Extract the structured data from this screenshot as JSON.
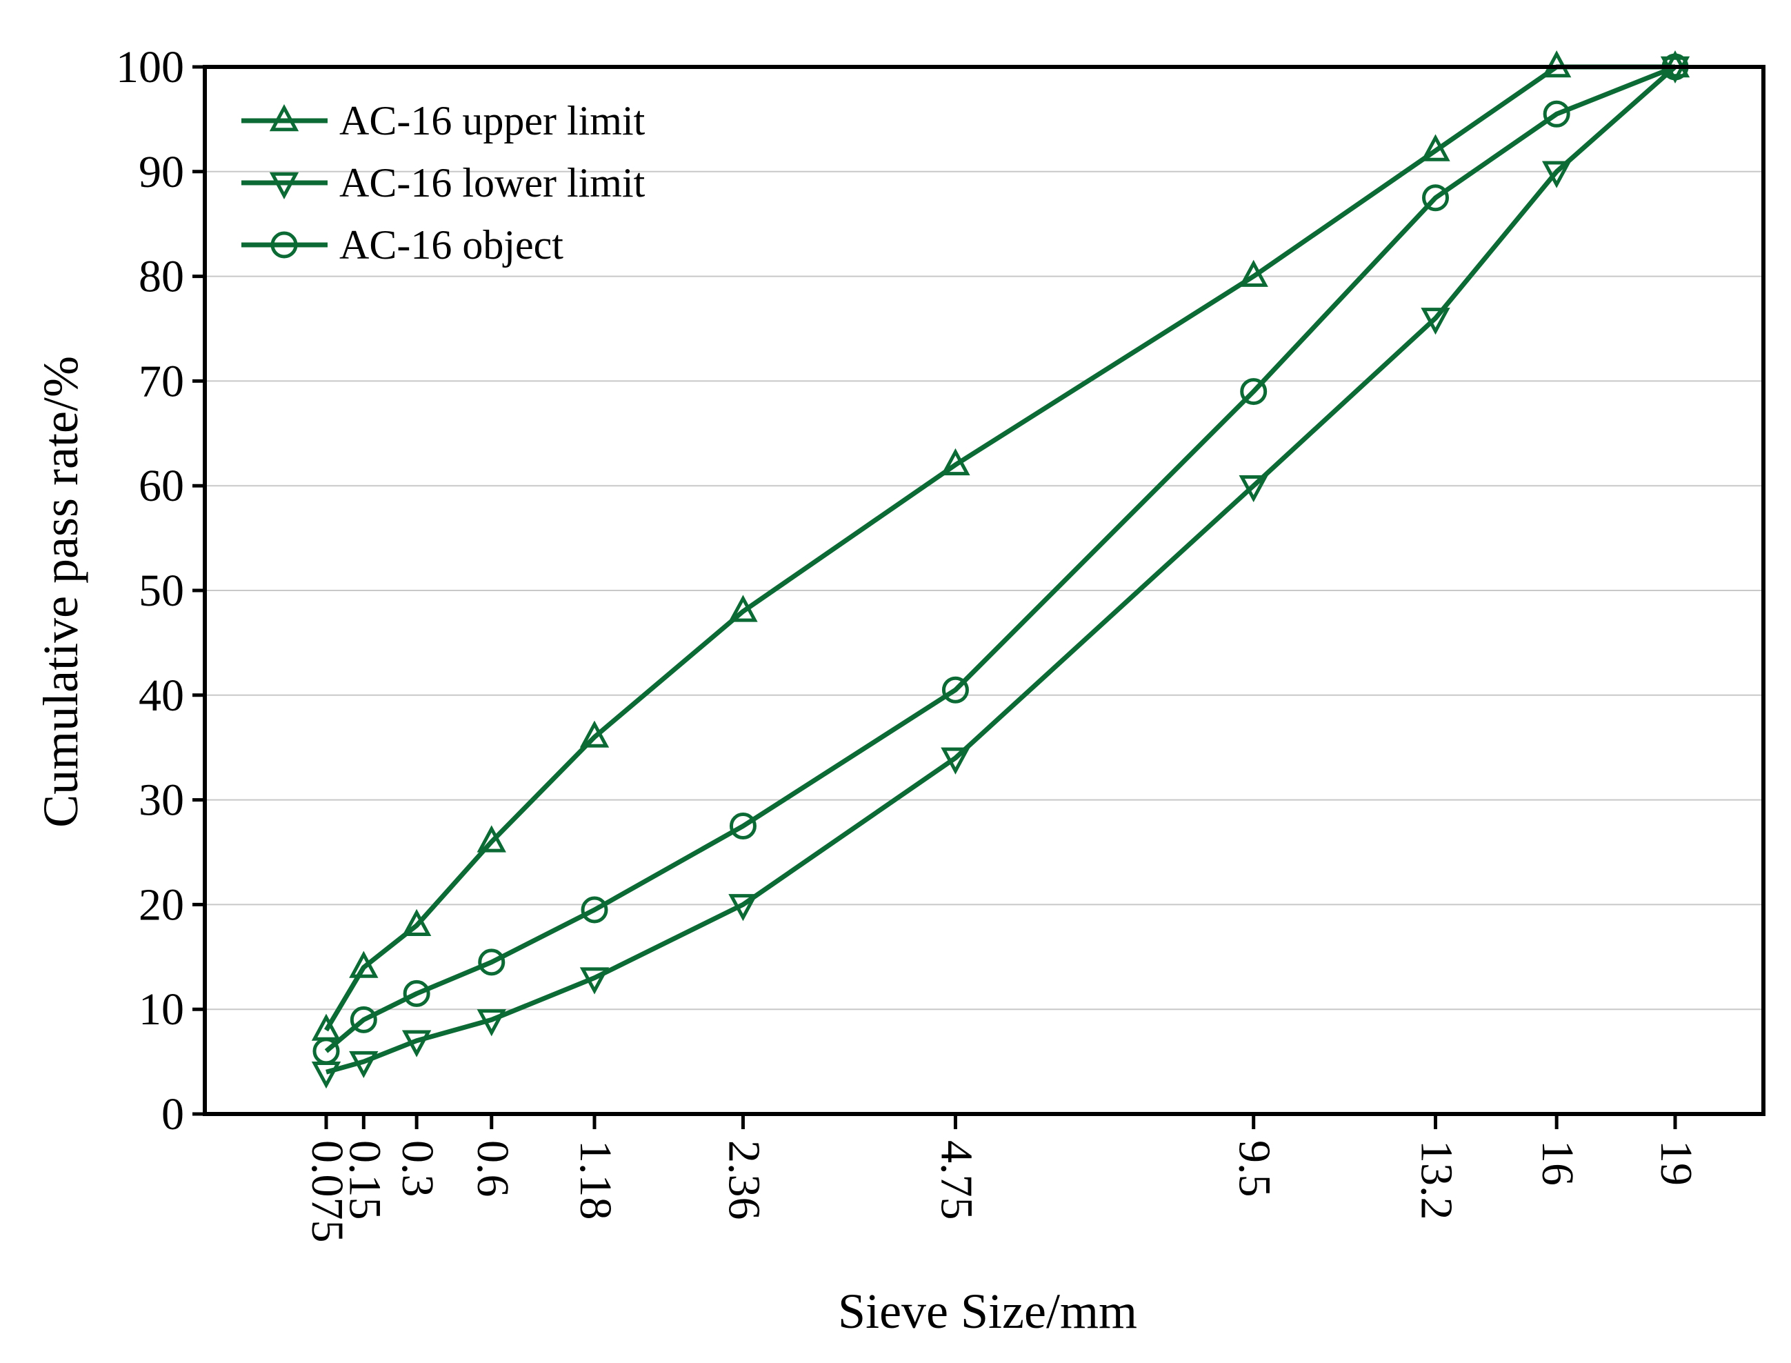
{
  "chart_data": {
    "type": "line",
    "title": "",
    "xlabel": "Sieve Size/mm",
    "ylabel": "Cumulative pass rate/%",
    "ylim": [
      0,
      100
    ],
    "yticks": [
      "0",
      "10",
      "20",
      "30",
      "40",
      "50",
      "60",
      "70",
      "80",
      "90",
      "100"
    ],
    "x_scale": "sqrt",
    "xlim": [
      0,
      20
    ],
    "x": [
      0.075,
      0.15,
      0.3,
      0.6,
      1.18,
      2.36,
      4.75,
      9.5,
      13.2,
      16,
      19
    ],
    "xtick_labels": [
      "0.075",
      "0.15",
      "0.3",
      "0.6",
      "1.18",
      "2.36",
      "4.75",
      "9.5",
      "13.2",
      "16",
      "19"
    ],
    "grid": true,
    "legend_position": "top-left",
    "series": [
      {
        "name": "AC-16 upper limit",
        "marker": "triangle-up",
        "values": [
          8,
          14,
          18,
          26,
          36,
          48,
          62,
          80,
          92,
          100,
          100
        ]
      },
      {
        "name": "AC-16 lower limit",
        "marker": "triangle-down",
        "values": [
          4,
          5,
          7,
          9,
          13,
          20,
          34,
          60,
          76,
          90,
          100
        ]
      },
      {
        "name": "AC-16 object",
        "marker": "circle",
        "values": [
          6,
          9,
          11.5,
          14.5,
          19.5,
          27.5,
          40.5,
          69,
          87.5,
          95.5,
          100
        ]
      }
    ],
    "colors": {
      "series": "#0c6b35",
      "grid": "#c8c8c8",
      "axis": "#000000"
    }
  }
}
